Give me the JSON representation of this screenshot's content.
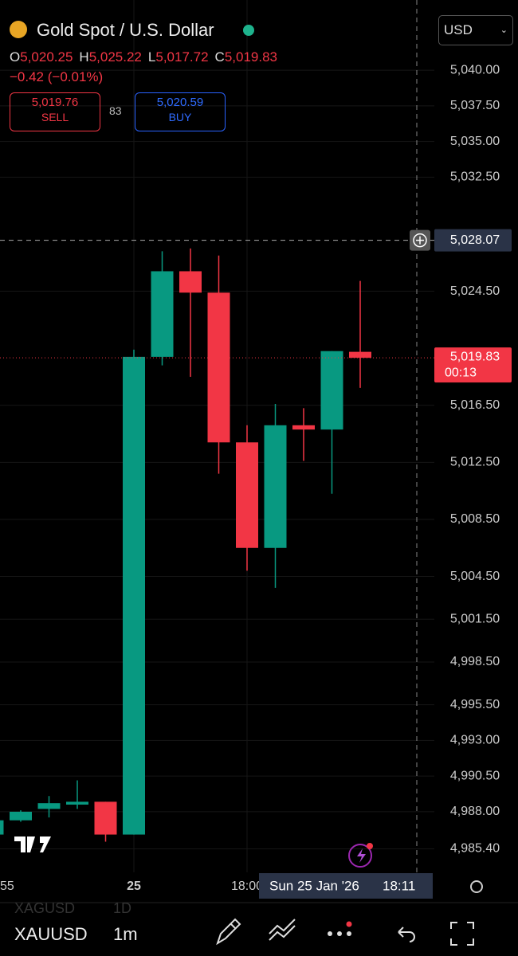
{
  "header": {
    "title": "Gold Spot / U.S. Dollar",
    "ohlc": [
      {
        "letter": "O",
        "value": "5,020.25"
      },
      {
        "letter": "H",
        "value": "5,025.22"
      },
      {
        "letter": "L",
        "value": "5,017.72"
      },
      {
        "letter": "C",
        "value": "5,019.83"
      }
    ],
    "change": "−0.42 (−0.01%)",
    "sell": {
      "price": "5,019.76",
      "label": "SELL"
    },
    "spread": "83",
    "buy": {
      "price": "5,020.59",
      "label": "BUY"
    },
    "currency": "USD"
  },
  "chart_data": {
    "type": "candlestick",
    "up_color": "#089981",
    "down_color": "#f23645",
    "categories": [
      "55",
      null,
      null,
      null,
      null,
      "25",
      null,
      null,
      null,
      "18:00",
      null,
      null,
      null,
      null
    ],
    "open": [
      4986.4,
      4987.4,
      4988.2,
      4988.5,
      4988.7,
      4986.4,
      5019.9,
      5025.9,
      5024.4,
      5013.9,
      5006.5,
      5015.1,
      5014.8,
      5020.25
    ],
    "high": [
      4987.4,
      4988.1,
      4989.1,
      4990.2,
      4988.7,
      5020.4,
      5027.3,
      5027.5,
      5027.0,
      5015.1,
      5016.6,
      5016.3,
      5020.3,
      5025.22
    ],
    "low": [
      4986.4,
      4987.3,
      4987.6,
      4988.2,
      4985.9,
      4986.4,
      5019.3,
      5018.5,
      5011.7,
      5004.9,
      5003.7,
      5012.6,
      5010.3,
      5017.72
    ],
    "close": [
      4987.4,
      4988.0,
      4988.6,
      4988.7,
      4986.4,
      5019.9,
      5025.9,
      5024.4,
      5013.9,
      5006.5,
      5015.1,
      5014.8,
      5020.3,
      5019.83
    ],
    "ylim": [
      4983.75,
      5044.92
    ],
    "yticks": [
      {
        "value": 5040,
        "label": "5,040.00"
      },
      {
        "value": 5037.5,
        "label": "5,037.50"
      },
      {
        "value": 5035,
        "label": "5,035.00"
      },
      {
        "value": 5032.5,
        "label": "5,032.50"
      },
      {
        "value": 5024.5,
        "label": "5,024.50"
      },
      {
        "value": 5016.5,
        "label": "5,016.50"
      },
      {
        "value": 5012.5,
        "label": "5,012.50"
      },
      {
        "value": 5008.5,
        "label": "5,008.50"
      },
      {
        "value": 5004.5,
        "label": "5,004.50"
      },
      {
        "value": 5001.5,
        "label": "5,001.50"
      },
      {
        "value": 4998.5,
        "label": "4,998.50"
      },
      {
        "value": 4995.5,
        "label": "4,995.50"
      },
      {
        "value": 4993,
        "label": "4,993.00"
      },
      {
        "value": 4990.5,
        "label": "4,990.50"
      },
      {
        "value": 4988,
        "label": "4,988.00"
      },
      {
        "value": 4985.4,
        "label": "4,985.40"
      }
    ],
    "last_price": {
      "value": 5019.83,
      "label": "5,019.83",
      "countdown": "00:13"
    },
    "crosshair": {
      "price": {
        "value": 5028.07,
        "label": "5,028.07"
      },
      "date": "Sun 25 Jan '26",
      "time": "18:11"
    }
  },
  "footer": {
    "symbol": "XAUUSD",
    "interval": "1m",
    "ghost_symbol": "XAGUSD",
    "ghost_interval": "1D"
  }
}
